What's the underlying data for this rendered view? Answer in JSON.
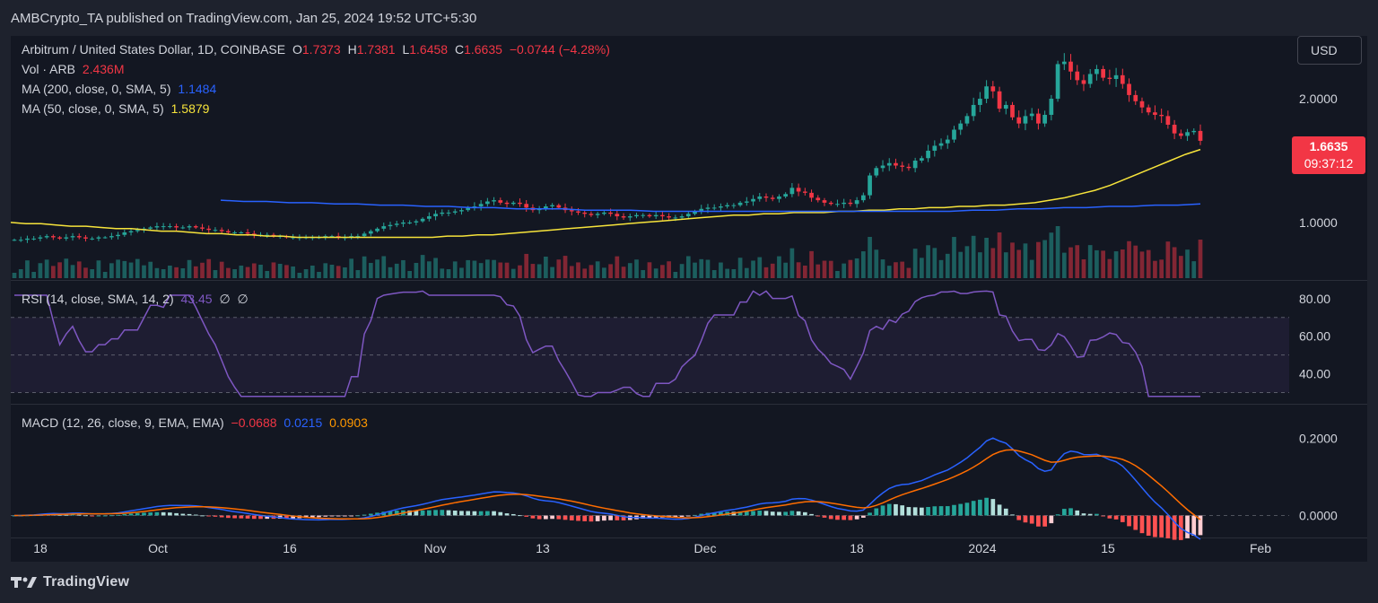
{
  "header": {
    "published": "AMBCrypto_TA published on TradingView.com, Jan 25, 2024 19:52 UTC+5:30"
  },
  "price_legend": {
    "symbol": "Arbitrum / United States Dollar, 1D, COINBASE",
    "o_label": "O",
    "o": "1.7373",
    "h_label": "H",
    "h": "1.7381",
    "l_label": "L",
    "l": "1.6458",
    "c_label": "C",
    "c": "1.6635",
    "change": "−0.0744 (−4.28%)",
    "vol_label": "Vol · ARB",
    "vol": "2.436M",
    "ma200_label": "MA (200, close, 0, SMA, 5)",
    "ma200": "1.1484",
    "ma50_label": "MA (50, close, 0, SMA, 5)",
    "ma50": "1.5879"
  },
  "rsi_legend": {
    "label": "RSI (14, close, SMA, 14, 2)",
    "value": "43.45",
    "ext1": "∅",
    "ext2": "∅"
  },
  "macd_legend": {
    "label": "MACD (12, 26, close, 9, EMA, EMA)",
    "hist": "−0.0688",
    "macd": "0.0215",
    "signal": "0.0903"
  },
  "currency_button": "USD",
  "last_price": {
    "price": "1.6635",
    "countdown": "09:37:12"
  },
  "footer": {
    "brand": "TradingView"
  },
  "colors": {
    "up": "#26a69a",
    "down": "#f23645",
    "ma50": "#f7e43b",
    "ma200": "#2962ff",
    "rsi": "#7e57c2",
    "macd": "#2962ff",
    "signal": "#ff6d00",
    "bg": "#131722"
  },
  "chart_data": {
    "type": "candlestick",
    "x_ticks": [
      "18",
      "Oct",
      "16",
      "Nov",
      "13",
      "Dec",
      "18",
      "2024",
      "15",
      "Feb"
    ],
    "price_axis": [
      "2.0000",
      "1.0000"
    ],
    "rsi_axis": [
      "80.00",
      "60.00",
      "40.00"
    ],
    "macd_axis": [
      "0.2000",
      "0.0000"
    ],
    "price_range": [
      0.55,
      2.45
    ],
    "rsi_range": [
      25,
      88
    ],
    "rsi_bands": [
      70,
      50,
      30
    ],
    "macd_range": [
      -0.05,
      0.28
    ],
    "close_series": [
      0.86,
      0.86,
      0.87,
      0.87,
      0.88,
      0.89,
      0.88,
      0.87,
      0.88,
      0.89,
      0.88,
      0.87,
      0.87,
      0.88,
      0.88,
      0.89,
      0.9,
      0.92,
      0.93,
      0.94,
      0.95,
      0.96,
      0.97,
      0.97,
      0.97,
      0.96,
      0.96,
      0.97,
      0.96,
      0.95,
      0.94,
      0.94,
      0.93,
      0.92,
      0.92,
      0.92,
      0.91,
      0.9,
      0.9,
      0.9,
      0.89,
      0.89,
      0.88,
      0.88,
      0.88,
      0.88,
      0.88,
      0.88,
      0.89,
      0.89,
      0.88,
      0.88,
      0.89,
      0.89,
      0.91,
      0.93,
      0.95,
      0.97,
      0.98,
      0.99,
      1.0,
      1.0,
      1.01,
      1.03,
      1.05,
      1.07,
      1.08,
      1.08,
      1.09,
      1.1,
      1.12,
      1.13,
      1.15,
      1.17,
      1.18,
      1.16,
      1.15,
      1.16,
      1.15,
      1.12,
      1.1,
      1.11,
      1.13,
      1.14,
      1.12,
      1.1,
      1.09,
      1.08,
      1.07,
      1.06,
      1.07,
      1.08,
      1.07,
      1.05,
      1.04,
      1.05,
      1.06,
      1.06,
      1.05,
      1.06,
      1.05,
      1.04,
      1.04,
      1.05,
      1.07,
      1.09,
      1.11,
      1.12,
      1.12,
      1.13,
      1.14,
      1.14,
      1.16,
      1.17,
      1.19,
      1.21,
      1.2,
      1.19,
      1.21,
      1.23,
      1.28,
      1.25,
      1.24,
      1.2,
      1.18,
      1.16,
      1.15,
      1.15,
      1.16,
      1.15,
      1.18,
      1.22,
      1.38,
      1.44,
      1.46,
      1.48,
      1.46,
      1.45,
      1.44,
      1.5,
      1.52,
      1.58,
      1.62,
      1.64,
      1.67,
      1.75,
      1.8,
      1.86,
      1.95,
      2.0,
      2.1,
      2.06,
      1.92,
      1.95,
      1.85,
      1.8,
      1.86,
      1.88,
      1.8,
      1.87,
      2.0,
      2.28,
      2.3,
      2.22,
      2.15,
      2.12,
      2.2,
      2.24,
      2.17,
      2.16,
      2.19,
      2.12,
      2.03,
      1.98,
      1.93,
      1.89,
      1.87,
      1.86,
      1.79,
      1.72,
      1.7,
      1.73,
      1.74,
      1.66
    ],
    "ma50_series": [
      1.0,
      0.99,
      0.99,
      0.98,
      0.97,
      0.97,
      0.96,
      0.95,
      0.95,
      0.94,
      0.93,
      0.93,
      0.92,
      0.91,
      0.91,
      0.9,
      0.9,
      0.89,
      0.89,
      0.88,
      0.88,
      0.88,
      0.88,
      0.88,
      0.88,
      0.88,
      0.88,
      0.88,
      0.88,
      0.89,
      0.89,
      0.9,
      0.9,
      0.91,
      0.92,
      0.93,
      0.94,
      0.95,
      0.96,
      0.97,
      0.98,
      0.99,
      1.0,
      1.01,
      1.02,
      1.03,
      1.04,
      1.05,
      1.06,
      1.06,
      1.07,
      1.07,
      1.08,
      1.08,
      1.08,
      1.09,
      1.09,
      1.1,
      1.1,
      1.11,
      1.11,
      1.12,
      1.12,
      1.13,
      1.13,
      1.14,
      1.14,
      1.15,
      1.16,
      1.18,
      1.2,
      1.23,
      1.26,
      1.3,
      1.35,
      1.4,
      1.45,
      1.5,
      1.55,
      1.59
    ],
    "ma200_series": [
      1.18,
      1.17,
      1.17,
      1.16,
      1.16,
      1.15,
      1.15,
      1.14,
      1.14,
      1.13,
      1.13,
      1.12,
      1.12,
      1.11,
      1.11,
      1.11,
      1.1,
      1.1,
      1.1,
      1.09,
      1.09,
      1.09,
      1.09,
      1.09,
      1.09,
      1.09,
      1.09,
      1.09,
      1.09,
      1.09,
      1.09,
      1.09,
      1.09,
      1.1,
      1.1,
      1.11,
      1.11,
      1.12,
      1.12,
      1.13,
      1.13,
      1.14,
      1.14,
      1.15
    ]
  }
}
